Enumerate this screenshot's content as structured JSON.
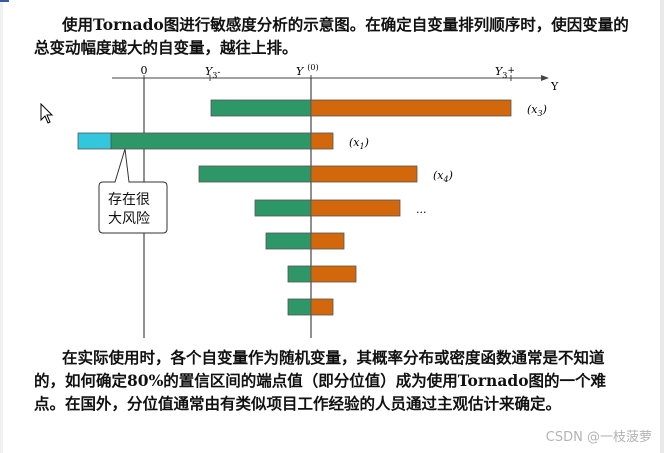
{
  "paragraphs": {
    "top": "使用Tornado图进行敏感度分析的示意图。在确定自变量排列顺序时，使因变量的总变动幅度越大的自变量，越往上排。",
    "bottom": "在实际使用时，各个自变量作为随机变量，其概率分布或密度函数通常是不知道的，如何确定80%的置信区间的端点值（即分位值）成为使用Tornado图的一个难点。在国外，分位值通常由有类似项目工作经验的人员通过主观估计来确定。"
  },
  "chart_data": {
    "type": "bar",
    "orientation": "horizontal",
    "axis": {
      "label": "Y",
      "tick_labels": [
        "0",
        "Y3-",
        "Y(0)",
        "Y3+"
      ]
    },
    "series_colors": {
      "low": "#2e9768",
      "high": "#d2680b",
      "risk": "#33c7dd"
    },
    "bars": [
      {
        "label": "(x3)",
        "low": -100,
        "high": 200
      },
      {
        "label": "(x1)",
        "low": -200,
        "high": 22,
        "risk_extra": -33
      },
      {
        "label": "(x4)",
        "low": -112,
        "high": 106
      },
      {
        "label": "...",
        "low": -56,
        "high": 89
      },
      {
        "label": "",
        "low": -45,
        "high": 33
      },
      {
        "label": "",
        "low": -23,
        "high": 45
      },
      {
        "label": "",
        "low": -23,
        "high": 22
      }
    ],
    "callout": {
      "lines": [
        "存在很",
        "大风险"
      ]
    }
  },
  "watermark": "CSDN @一枝菠萝"
}
